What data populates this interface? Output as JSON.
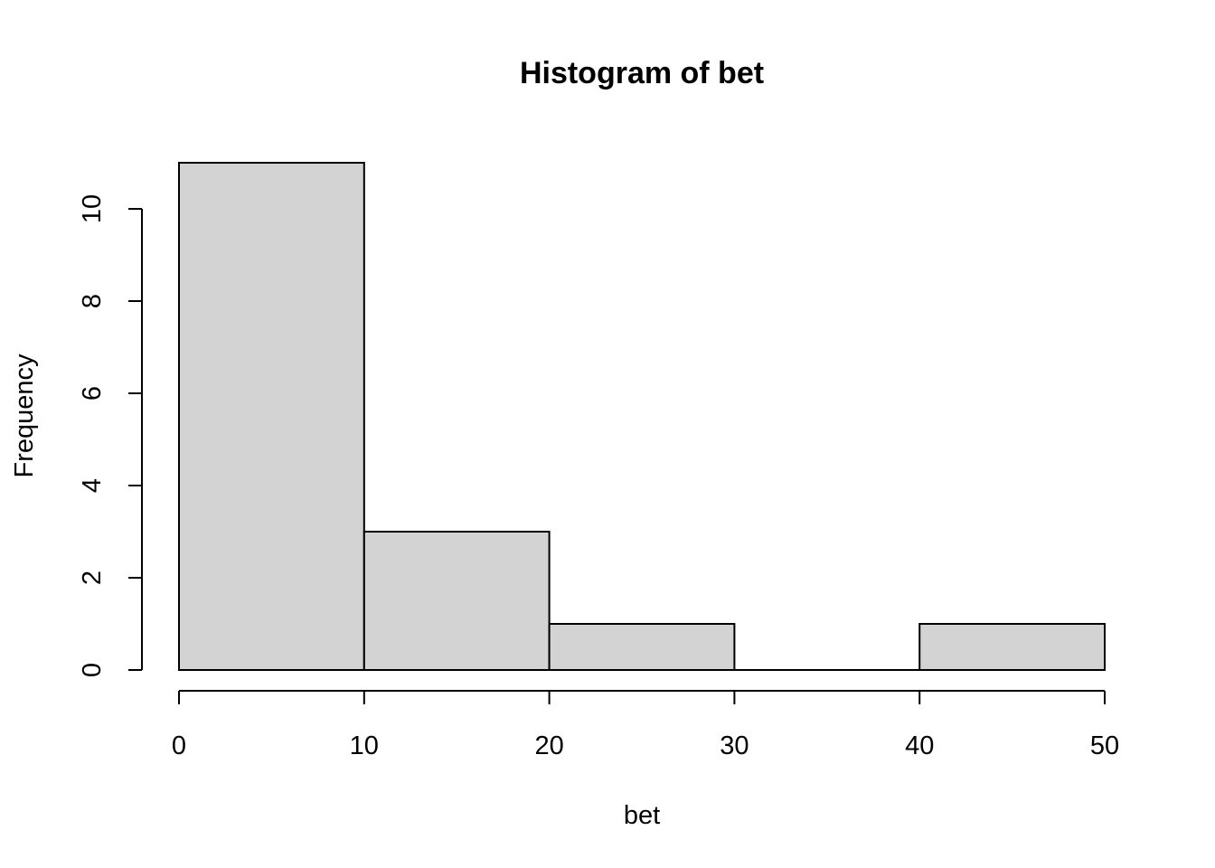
{
  "chart_data": {
    "type": "histogram",
    "title": "Histogram of bet",
    "xlabel": "bet",
    "ylabel": "Frequency",
    "bins": [
      {
        "start": 0,
        "end": 10,
        "count": 11
      },
      {
        "start": 10,
        "end": 20,
        "count": 3
      },
      {
        "start": 20,
        "end": 30,
        "count": 1
      },
      {
        "start": 30,
        "end": 40,
        "count": 0
      },
      {
        "start": 40,
        "end": 50,
        "count": 1
      }
    ],
    "xlim": [
      0,
      50
    ],
    "ylim": [
      0,
      11
    ],
    "xticks": [
      "0",
      "10",
      "20",
      "30",
      "40",
      "50"
    ],
    "yticks": [
      "0",
      "2",
      "4",
      "6",
      "8",
      "10"
    ],
    "grid": false,
    "colors": {
      "bar_fill": "#d3d3d3",
      "bar_stroke": "#000000"
    }
  }
}
